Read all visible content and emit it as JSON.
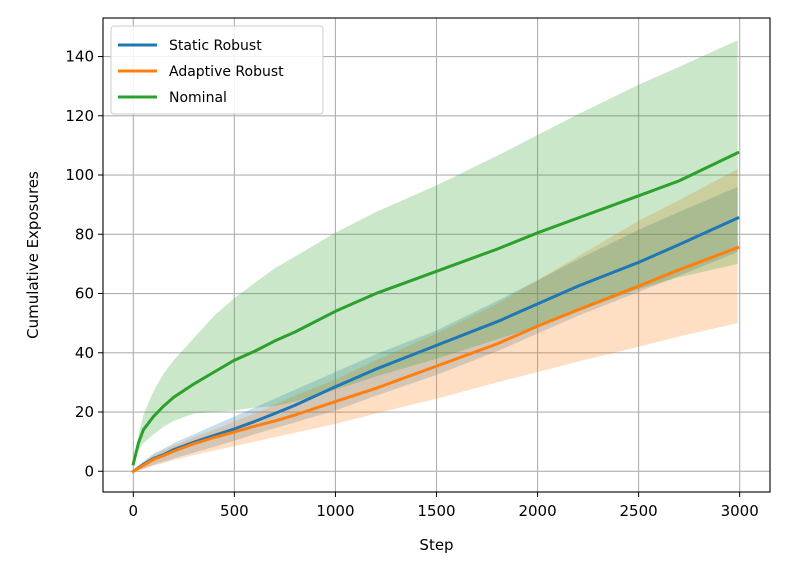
{
  "chart_data": {
    "type": "line",
    "title": "",
    "xlabel": "Step",
    "ylabel": "Cumulative Exposures",
    "xlim": [
      -150,
      3150
    ],
    "ylim": [
      -7,
      153
    ],
    "xticks": [
      0,
      500,
      1000,
      1500,
      2000,
      2500,
      3000
    ],
    "yticks": [
      0,
      20,
      40,
      60,
      80,
      100,
      120,
      140
    ],
    "grid": true,
    "legend_position": "upper-left",
    "x": [
      0,
      25,
      50,
      100,
      150,
      200,
      300,
      400,
      500,
      600,
      700,
      800,
      1000,
      1200,
      1500,
      1800,
      2000,
      2200,
      2500,
      2700,
      2990
    ],
    "series": [
      {
        "name": "Static Robust",
        "color": "#1f77b4",
        "values": [
          0,
          1.2,
          2.3,
          4.3,
          5.6,
          7.3,
          9.8,
          12.1,
          14.3,
          16.8,
          19.5,
          22.3,
          28.5,
          34.5,
          42.5,
          50.5,
          56.5,
          62.5,
          70.5,
          76.5,
          85.5
        ],
        "band_low": [
          0,
          0.4,
          0.9,
          2.2,
          3.2,
          4.3,
          6.3,
          8.3,
          10.3,
          12.5,
          14.5,
          16.5,
          20.5,
          25.5,
          32.5,
          40.5,
          46.5,
          52.5,
          60.5,
          66,
          74
        ],
        "band_high": [
          0,
          1.8,
          3.3,
          6,
          7.6,
          9.5,
          12.5,
          15.5,
          18.5,
          21.5,
          24.5,
          27.5,
          33.5,
          39.5,
          47.5,
          57.5,
          64.5,
          71.5,
          81.5,
          87.5,
          96
        ]
      },
      {
        "name": "Adaptive Robust",
        "color": "#ff7f0e",
        "values": [
          0,
          1,
          2,
          4,
          5.3,
          6.8,
          9.3,
          11.4,
          13.3,
          15.2,
          17,
          19,
          23.5,
          28,
          35.5,
          43,
          49,
          54.5,
          62.5,
          68,
          75.5
        ],
        "band_low": [
          0,
          0.3,
          0.7,
          1.8,
          2.8,
          3.8,
          5.5,
          7,
          8.5,
          10,
          11.5,
          13,
          16,
          19.5,
          24.5,
          30,
          33.5,
          37,
          42,
          45.5,
          50
        ],
        "band_high": [
          0,
          1.6,
          3,
          5.5,
          7,
          8.6,
          11.5,
          14,
          16.8,
          19.5,
          22.5,
          25.5,
          31,
          37.5,
          46.5,
          56.5,
          64.5,
          72.5,
          84.5,
          91.5,
          102
        ]
      },
      {
        "name": "Nominal",
        "color": "#2ca02c",
        "values": [
          2.5,
          9.5,
          14,
          18.5,
          22,
          25,
          29.5,
          33.5,
          37.5,
          40.5,
          44,
          47,
          54,
          60,
          67.5,
          75,
          80.5,
          85.5,
          93,
          98,
          107.5
        ],
        "band_low": [
          2.5,
          7,
          9.5,
          12.5,
          15,
          17,
          19.5,
          20,
          20.5,
          21.5,
          22,
          23.5,
          27.5,
          32,
          38,
          44.5,
          49,
          54,
          61.5,
          65.5,
          70
        ],
        "band_high": [
          2.5,
          12,
          19,
          27,
          33,
          37.5,
          45,
          52.5,
          58.5,
          63.5,
          68.5,
          72.5,
          80.5,
          87.5,
          96.5,
          106.5,
          113.5,
          120.5,
          130.5,
          136.5,
          145.5
        ]
      }
    ]
  }
}
